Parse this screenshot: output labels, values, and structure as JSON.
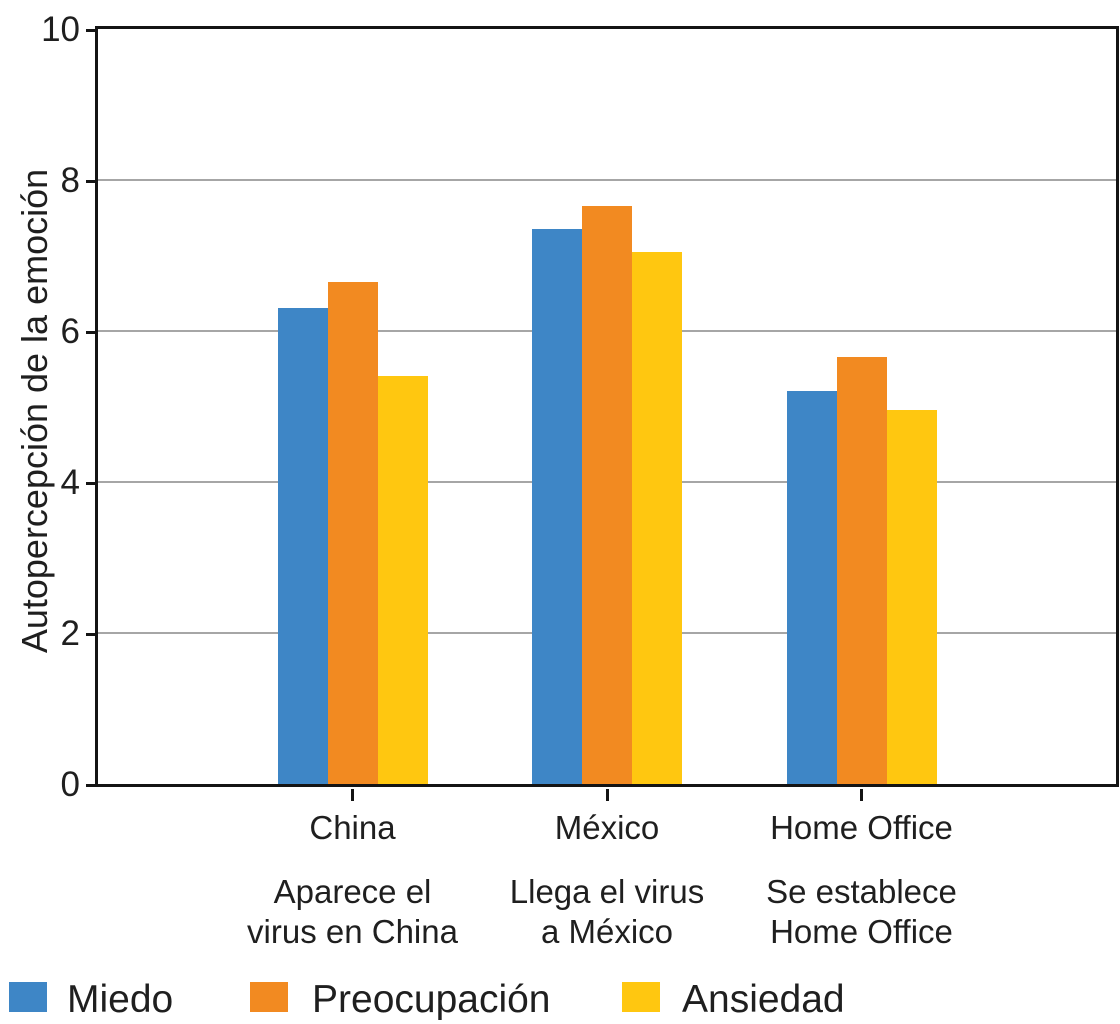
{
  "colors": {
    "axis": "#141414",
    "grid": "#A6A6A6",
    "text": "#1F1F1F",
    "background": "#FFFFFF"
  },
  "chart_data": {
    "type": "bar",
    "title": "",
    "xlabel": "",
    "ylabel": "Autopercepción de la emoción",
    "ylim": [
      0,
      10
    ],
    "yticks": [
      0,
      2,
      4,
      6,
      8,
      10
    ],
    "grid": "horizontal",
    "legend_position": "bottom",
    "categories": [
      "China",
      "México",
      "Home Office"
    ],
    "category_sublabels": [
      "Aparece el\nvirus en China",
      "Llega el virus\na México",
      "Se establece\nHome Office"
    ],
    "series": [
      {
        "name": "Miedo",
        "color": "#3E86C6",
        "values": [
          6.3,
          7.35,
          5.2
        ]
      },
      {
        "name": "Preocupación",
        "color": "#F28A21",
        "values": [
          6.65,
          7.65,
          5.65
        ]
      },
      {
        "name": "Ansiedad",
        "color": "#FFC710",
        "values": [
          5.4,
          7.05,
          4.95
        ]
      }
    ]
  }
}
